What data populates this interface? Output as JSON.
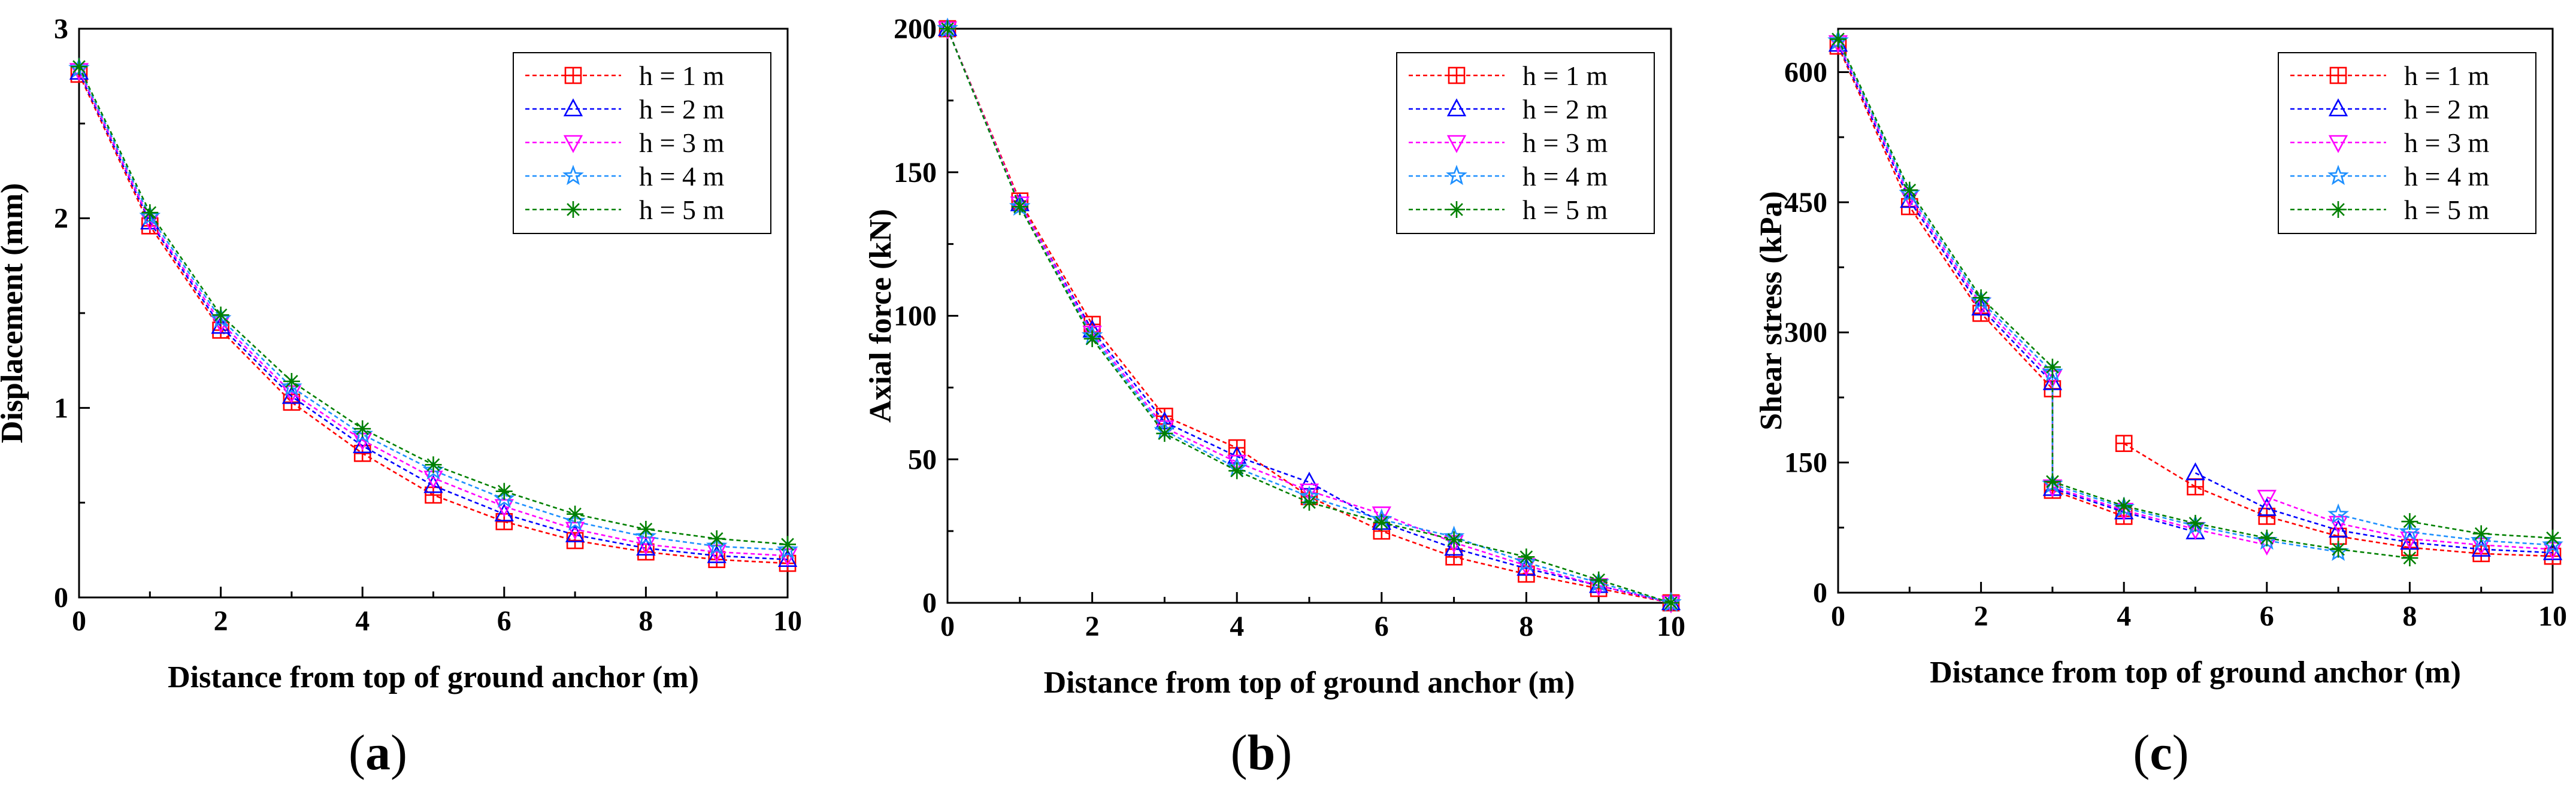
{
  "figure": {
    "panels": [
      "(a)",
      "(b)",
      "(c)"
    ]
  },
  "styles": {
    "series_colors": [
      "#ff0000",
      "#0000ff",
      "#ff00ff",
      "#1e90ff",
      "#008000"
    ],
    "markers": [
      "square-cross",
      "triangle-up",
      "triangle-down",
      "star",
      "asterisk"
    ]
  },
  "chart_data": [
    {
      "type": "line",
      "panel": "(a)",
      "title": "",
      "xlabel": "Distance from top of ground anchor (m)",
      "ylabel": "Displacement (mm)",
      "xlim": [
        0,
        10
      ],
      "ylim": [
        0,
        3
      ],
      "xticks": [
        0,
        2,
        4,
        6,
        8,
        10
      ],
      "yticks": [
        0,
        1,
        2,
        3
      ],
      "legend_position": "top-right",
      "x": [
        0,
        1,
        2,
        3,
        4,
        5,
        6,
        7,
        8,
        9,
        10
      ],
      "series": [
        {
          "name": "h = 1 m",
          "values": [
            2.76,
            1.96,
            1.41,
            1.03,
            0.76,
            0.54,
            0.4,
            0.3,
            0.24,
            0.2,
            0.18
          ]
        },
        {
          "name": "h = 2 m",
          "values": [
            2.77,
            1.98,
            1.43,
            1.06,
            0.8,
            0.59,
            0.44,
            0.33,
            0.26,
            0.22,
            0.2
          ]
        },
        {
          "name": "h = 3 m",
          "values": [
            2.78,
            1.99,
            1.45,
            1.08,
            0.83,
            0.63,
            0.48,
            0.36,
            0.28,
            0.24,
            0.22
          ]
        },
        {
          "name": "h = 4 m",
          "values": [
            2.79,
            2.01,
            1.47,
            1.11,
            0.86,
            0.67,
            0.52,
            0.4,
            0.32,
            0.27,
            0.25
          ]
        },
        {
          "name": "h = 5 m",
          "values": [
            2.8,
            2.03,
            1.49,
            1.14,
            0.89,
            0.7,
            0.56,
            0.44,
            0.36,
            0.31,
            0.28
          ]
        }
      ]
    },
    {
      "type": "line",
      "panel": "(b)",
      "title": "",
      "xlabel": "Distance from top of ground anchor (m)",
      "ylabel": "Axial force (kN)",
      "xlim": [
        0,
        10
      ],
      "ylim": [
        0,
        200
      ],
      "xticks": [
        0,
        2,
        4,
        6,
        8,
        10
      ],
      "yticks": [
        0,
        50,
        100,
        150,
        200
      ],
      "legend_position": "top-right",
      "x": [
        0,
        1,
        2,
        3,
        4,
        5,
        6,
        7,
        8,
        9,
        10
      ],
      "series": [
        {
          "name": "h = 1 m",
          "values": [
            200,
            140,
            97,
            65,
            54,
            37,
            25,
            16,
            10,
            5,
            0
          ]
        },
        {
          "name": "h = 2 m",
          "values": [
            200,
            139,
            95,
            63,
            51,
            42,
            28,
            19,
            12,
            6,
            0
          ]
        },
        {
          "name": "h = 3 m",
          "values": [
            200,
            139,
            94,
            61,
            49,
            39,
            31,
            21,
            13,
            6,
            0
          ]
        },
        {
          "name": "h = 4 m",
          "values": [
            200,
            138,
            93,
            60,
            47,
            37,
            29,
            23,
            14,
            7,
            0
          ]
        },
        {
          "name": "h = 5 m",
          "values": [
            200,
            138,
            92,
            59,
            46,
            35,
            28,
            22,
            16,
            8,
            0
          ]
        }
      ]
    },
    {
      "type": "line",
      "panel": "(c)",
      "title": "",
      "xlabel": "Distance from top of ground anchor (m)",
      "ylabel": "Shear stress (kPa)",
      "xlim": [
        0,
        10
      ],
      "ylim": [
        0,
        650
      ],
      "xticks": [
        0,
        2,
        4,
        6,
        8,
        10
      ],
      "yticks": [
        0,
        150,
        300,
        450,
        600
      ],
      "legend_position": "top-right",
      "series": [
        {
          "name": "h = 1 m",
          "segments": [
            {
              "x": [
                0,
                1,
                2,
                3,
                3
              ],
              "y": [
                630,
                445,
                322,
                235,
                118
              ]
            },
            {
              "x": [
                3,
                4
              ],
              "y": [
                118,
                88
              ]
            },
            {
              "x": [
                4,
                5,
                6,
                7,
                8,
                9,
                10
              ],
              "y": [
                172,
                122,
                88,
                65,
                52,
                45,
                42
              ]
            }
          ]
        },
        {
          "name": "h = 2 m",
          "segments": [
            {
              "x": [
                0,
                1,
                2,
                3,
                3
              ],
              "y": [
                632,
                452,
                328,
                242,
                120
              ]
            },
            {
              "x": [
                3,
                4,
                5
              ],
              "y": [
                120,
                93,
                70
              ]
            },
            {
              "x": [
                5,
                6,
                7,
                8,
                9,
                10
              ],
              "y": [
                138,
                97,
                72,
                58,
                50,
                46
              ]
            }
          ]
        },
        {
          "name": "h = 3 m",
          "segments": [
            {
              "x": [
                0,
                1,
                2,
                3,
                3
              ],
              "y": [
                634,
                456,
                332,
                248,
                122
              ]
            },
            {
              "x": [
                3,
                4,
                5,
                6
              ],
              "y": [
                122,
                95,
                73,
                55
              ]
            },
            {
              "x": [
                6,
                7,
                8,
                9,
                10
              ],
              "y": [
                110,
                80,
                62,
                55,
                50
              ]
            }
          ]
        },
        {
          "name": "h = 4 m",
          "segments": [
            {
              "x": [
                0,
                1,
                2,
                3,
                3
              ],
              "y": [
                636,
                460,
                336,
                254,
                125
              ]
            },
            {
              "x": [
                3,
                4,
                5,
                6,
                7
              ],
              "y": [
                125,
                98,
                77,
                60,
                47
              ]
            },
            {
              "x": [
                7,
                8,
                9,
                10
              ],
              "y": [
                90,
                70,
                60,
                55
              ]
            }
          ]
        },
        {
          "name": "h = 5 m",
          "segments": [
            {
              "x": [
                0,
                1,
                2,
                3,
                3
              ],
              "y": [
                638,
                464,
                340,
                260,
                128
              ]
            },
            {
              "x": [
                3,
                4,
                5,
                6,
                7,
                8
              ],
              "y": [
                128,
                100,
                80,
                63,
                50,
                40
              ]
            },
            {
              "x": [
                8,
                9,
                10
              ],
              "y": [
                82,
                68,
                63
              ]
            }
          ]
        }
      ]
    }
  ]
}
